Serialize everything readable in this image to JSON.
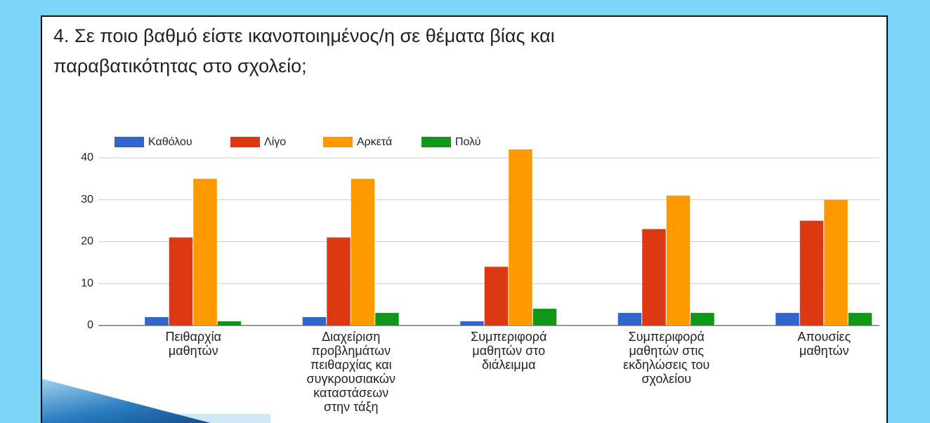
{
  "chart_data": {
    "type": "bar",
    "title": "4. Σε ποιο βαθμό είστε ικανοποιημένος/η σε θέματα βίας και\nπαραβατικότητας στο σχολείο;",
    "categories": [
      "Πειθαρχία\nμαθητών",
      "Διαχείριση\nπροβλημάτων\nπειθαρχίας και\nσυγκρουσιακών\nκαταστάσεων\nστην τάξη",
      "Συμπεριφορά\nμαθητών στο\nδιάλειμμα",
      "Συμπεριφορά\nμαθητών στις\nεκδηλώσεις του\nσχολείου",
      "Απουσίες\nμαθητών"
    ],
    "series": [
      {
        "name": "Καθόλου",
        "color": "#3366cc",
        "values": [
          2,
          2,
          1,
          3,
          3
        ]
      },
      {
        "name": "Λίγο",
        "color": "#dc3912",
        "values": [
          21,
          21,
          14,
          23,
          25
        ]
      },
      {
        "name": "Αρκετά",
        "color": "#ff9900",
        "values": [
          35,
          35,
          42,
          31,
          30
        ]
      },
      {
        "name": "Πολύ",
        "color": "#109618",
        "values": [
          1,
          3,
          4,
          3,
          3
        ]
      }
    ],
    "ylim": [
      0,
      42
    ],
    "yticks": [
      0,
      10,
      20,
      30,
      40
    ],
    "grid": true,
    "legend": "top"
  }
}
